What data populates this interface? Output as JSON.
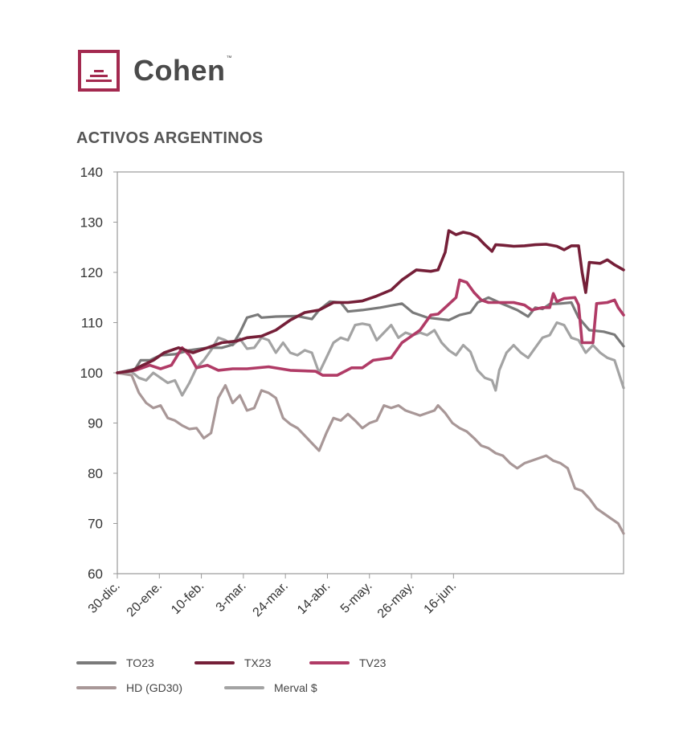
{
  "brand": {
    "name": "Cohen",
    "trademark": "™",
    "color": "#a3294f"
  },
  "chart_data": {
    "type": "line",
    "title": "ACTIVOS ARGENTINOS",
    "xlabel": "",
    "ylabel": "",
    "ylim": [
      60,
      140
    ],
    "yticks": [
      60,
      70,
      80,
      90,
      100,
      110,
      120,
      130,
      140
    ],
    "xtick_labels": [
      "30-dic.",
      "20-ene.",
      "10-feb.",
      "3-mar.",
      "24-mar.",
      "14-abr.",
      "5-may.",
      "26-may.",
      "16-jun."
    ],
    "grid": false,
    "legend_position": "bottom",
    "series": [
      {
        "name": "TO23",
        "color": "#7a7a7a",
        "values": [
          [
            0,
            100
          ],
          [
            10,
            100.8
          ],
          [
            13,
            102.5
          ],
          [
            18,
            102.5
          ],
          [
            24,
            103.5
          ],
          [
            32,
            103.7
          ],
          [
            40,
            104.5
          ],
          [
            50,
            105
          ],
          [
            58,
            105
          ],
          [
            64,
            105.6
          ],
          [
            68,
            108
          ],
          [
            72,
            111
          ],
          [
            78,
            111.6
          ],
          [
            80,
            111
          ],
          [
            88,
            111.2
          ],
          [
            100,
            111.3
          ],
          [
            108,
            110.7
          ],
          [
            112,
            112.5
          ],
          [
            118,
            114.2
          ],
          [
            124,
            114
          ],
          [
            128,
            112.2
          ],
          [
            136,
            112.5
          ],
          [
            146,
            113
          ],
          [
            158,
            113.8
          ],
          [
            164,
            112
          ],
          [
            172,
            111
          ],
          [
            184,
            110.5
          ],
          [
            190,
            111.5
          ],
          [
            196,
            112
          ],
          [
            200,
            114
          ],
          [
            206,
            115
          ],
          [
            212,
            114
          ],
          [
            222,
            112.5
          ],
          [
            228,
            111.2
          ],
          [
            232,
            113
          ],
          [
            236,
            112.7
          ],
          [
            240,
            113.7
          ],
          [
            246,
            113.8
          ],
          [
            252,
            114
          ],
          [
            256,
            111
          ],
          [
            262,
            108.5
          ],
          [
            270,
            108.2
          ],
          [
            276,
            107.6
          ],
          [
            281,
            105.3
          ]
        ]
      },
      {
        "name": "TX23",
        "color": "#751f38",
        "values": [
          [
            0,
            100
          ],
          [
            8,
            100.4
          ],
          [
            14,
            101.5
          ],
          [
            20,
            102.5
          ],
          [
            26,
            104
          ],
          [
            34,
            105
          ],
          [
            42,
            104
          ],
          [
            50,
            105
          ],
          [
            58,
            106
          ],
          [
            66,
            106.3
          ],
          [
            72,
            107
          ],
          [
            80,
            107.3
          ],
          [
            88,
            108.5
          ],
          [
            96,
            110.5
          ],
          [
            104,
            112
          ],
          [
            112,
            112.5
          ],
          [
            120,
            114
          ],
          [
            128,
            114
          ],
          [
            136,
            114.3
          ],
          [
            144,
            115.3
          ],
          [
            152,
            116.5
          ],
          [
            158,
            118.5
          ],
          [
            166,
            120.5
          ],
          [
            174,
            120.2
          ],
          [
            178,
            120.5
          ],
          [
            182,
            124
          ],
          [
            184,
            128.3
          ],
          [
            188,
            127.5
          ],
          [
            192,
            128
          ],
          [
            196,
            127.7
          ],
          [
            200,
            127
          ],
          [
            204,
            125.5
          ],
          [
            208,
            124.2
          ],
          [
            210,
            125.5
          ],
          [
            214,
            125.4
          ],
          [
            220,
            125.2
          ],
          [
            226,
            125.3
          ],
          [
            232,
            125.5
          ],
          [
            238,
            125.6
          ],
          [
            244,
            125.2
          ],
          [
            248,
            124.5
          ],
          [
            252,
            125.3
          ],
          [
            256,
            125.3
          ],
          [
            258,
            120
          ],
          [
            260,
            116
          ],
          [
            262,
            122
          ],
          [
            268,
            121.8
          ],
          [
            272,
            122.5
          ],
          [
            276,
            121.5
          ],
          [
            281,
            120.5
          ]
        ]
      },
      {
        "name": "TV23",
        "color": "#b03b66",
        "values": [
          [
            0,
            100
          ],
          [
            10,
            100.5
          ],
          [
            18,
            101.5
          ],
          [
            24,
            100.8
          ],
          [
            30,
            101.5
          ],
          [
            36,
            105
          ],
          [
            40,
            103.5
          ],
          [
            44,
            101
          ],
          [
            50,
            101.5
          ],
          [
            56,
            100.5
          ],
          [
            64,
            100.8
          ],
          [
            72,
            100.8
          ],
          [
            84,
            101.2
          ],
          [
            96,
            100.5
          ],
          [
            110,
            100.3
          ],
          [
            114,
            99.5
          ],
          [
            122,
            99.5
          ],
          [
            130,
            101
          ],
          [
            136,
            101
          ],
          [
            142,
            102.5
          ],
          [
            152,
            103
          ],
          [
            158,
            106
          ],
          [
            162,
            107
          ],
          [
            168,
            108.5
          ],
          [
            174,
            111.5
          ],
          [
            178,
            111.7
          ],
          [
            182,
            113
          ],
          [
            188,
            115
          ],
          [
            190,
            118.5
          ],
          [
            194,
            118
          ],
          [
            198,
            116
          ],
          [
            202,
            114.5
          ],
          [
            206,
            114
          ],
          [
            212,
            114
          ],
          [
            220,
            114
          ],
          [
            226,
            113.5
          ],
          [
            230,
            112.5
          ],
          [
            236,
            113
          ],
          [
            240,
            113
          ],
          [
            242,
            115.8
          ],
          [
            244,
            114.2
          ],
          [
            248,
            114.8
          ],
          [
            254,
            115
          ],
          [
            256,
            113.5
          ],
          [
            258,
            106
          ],
          [
            264,
            106
          ],
          [
            266,
            113.8
          ],
          [
            272,
            114
          ],
          [
            276,
            114.5
          ],
          [
            278,
            113
          ],
          [
            281,
            111.5
          ]
        ]
      },
      {
        "name": "HD (GD30)",
        "color": "#a89797",
        "values": [
          [
            0,
            100
          ],
          [
            8,
            99.5
          ],
          [
            12,
            96
          ],
          [
            16,
            94
          ],
          [
            20,
            93
          ],
          [
            24,
            93.5
          ],
          [
            28,
            91
          ],
          [
            32,
            90.5
          ],
          [
            36,
            89.5
          ],
          [
            40,
            88.8
          ],
          [
            44,
            89
          ],
          [
            48,
            87
          ],
          [
            52,
            88
          ],
          [
            56,
            95
          ],
          [
            60,
            97.5
          ],
          [
            64,
            94
          ],
          [
            68,
            95.5
          ],
          [
            72,
            92.5
          ],
          [
            76,
            93
          ],
          [
            80,
            96.5
          ],
          [
            84,
            96
          ],
          [
            88,
            95
          ],
          [
            92,
            91
          ],
          [
            96,
            89.8
          ],
          [
            100,
            89
          ],
          [
            104,
            87.5
          ],
          [
            108,
            86
          ],
          [
            112,
            84.5
          ],
          [
            116,
            88
          ],
          [
            120,
            91
          ],
          [
            124,
            90.5
          ],
          [
            128,
            91.8
          ],
          [
            132,
            90.5
          ],
          [
            136,
            89
          ],
          [
            140,
            90
          ],
          [
            144,
            90.5
          ],
          [
            148,
            93.5
          ],
          [
            152,
            93
          ],
          [
            156,
            93.5
          ],
          [
            160,
            92.5
          ],
          [
            164,
            92
          ],
          [
            168,
            91.5
          ],
          [
            172,
            92
          ],
          [
            176,
            92.5
          ],
          [
            178,
            93.5
          ],
          [
            182,
            92
          ],
          [
            186,
            90
          ],
          [
            190,
            89
          ],
          [
            194,
            88.3
          ],
          [
            198,
            87
          ],
          [
            202,
            85.5
          ],
          [
            206,
            85
          ],
          [
            210,
            84
          ],
          [
            214,
            83.5
          ],
          [
            218,
            82
          ],
          [
            222,
            81
          ],
          [
            226,
            82
          ],
          [
            230,
            82.5
          ],
          [
            234,
            83
          ],
          [
            238,
            83.5
          ],
          [
            242,
            82.5
          ],
          [
            246,
            82
          ],
          [
            250,
            81
          ],
          [
            254,
            77
          ],
          [
            258,
            76.5
          ],
          [
            262,
            75
          ],
          [
            266,
            73
          ],
          [
            270,
            72
          ],
          [
            274,
            71
          ],
          [
            278,
            70
          ],
          [
            281,
            68
          ]
        ]
      },
      {
        "name": "Merval $",
        "color": "#a3a3a3",
        "values": [
          [
            0,
            100
          ],
          [
            8,
            100.2
          ],
          [
            12,
            99
          ],
          [
            16,
            98.5
          ],
          [
            20,
            100
          ],
          [
            24,
            99
          ],
          [
            28,
            98
          ],
          [
            32,
            98.5
          ],
          [
            36,
            95.5
          ],
          [
            40,
            98
          ],
          [
            44,
            101
          ],
          [
            48,
            102.5
          ],
          [
            52,
            104.5
          ],
          [
            56,
            107
          ],
          [
            60,
            106.5
          ],
          [
            64,
            105.5
          ],
          [
            68,
            106.8
          ],
          [
            72,
            104.8
          ],
          [
            76,
            105
          ],
          [
            80,
            107
          ],
          [
            84,
            106.5
          ],
          [
            88,
            104
          ],
          [
            92,
            106
          ],
          [
            96,
            104
          ],
          [
            100,
            103.5
          ],
          [
            104,
            104.5
          ],
          [
            108,
            104
          ],
          [
            112,
            100
          ],
          [
            116,
            103
          ],
          [
            120,
            106
          ],
          [
            124,
            107
          ],
          [
            128,
            106.5
          ],
          [
            132,
            109.5
          ],
          [
            136,
            109.8
          ],
          [
            140,
            109.5
          ],
          [
            144,
            106.5
          ],
          [
            148,
            108
          ],
          [
            152,
            109.5
          ],
          [
            156,
            107
          ],
          [
            160,
            108
          ],
          [
            164,
            107.5
          ],
          [
            168,
            108
          ],
          [
            172,
            107.5
          ],
          [
            176,
            108.5
          ],
          [
            180,
            106
          ],
          [
            184,
            104.5
          ],
          [
            188,
            103.5
          ],
          [
            192,
            105.5
          ],
          [
            196,
            104.2
          ],
          [
            200,
            100.5
          ],
          [
            204,
            99
          ],
          [
            208,
            98.5
          ],
          [
            210,
            96.5
          ],
          [
            212,
            100.5
          ],
          [
            216,
            104
          ],
          [
            220,
            105.5
          ],
          [
            224,
            104
          ],
          [
            228,
            103
          ],
          [
            232,
            105
          ],
          [
            236,
            107
          ],
          [
            240,
            107.5
          ],
          [
            244,
            110
          ],
          [
            248,
            109.5
          ],
          [
            252,
            107
          ],
          [
            256,
            106.5
          ],
          [
            260,
            104
          ],
          [
            264,
            105.5
          ],
          [
            268,
            104
          ],
          [
            272,
            103
          ],
          [
            276,
            102.5
          ],
          [
            281,
            97
          ]
        ]
      }
    ]
  },
  "labels": {
    "legend": [
      "TO23",
      "TX23",
      "TV23",
      "HD (GD30)",
      "Merval $"
    ]
  }
}
